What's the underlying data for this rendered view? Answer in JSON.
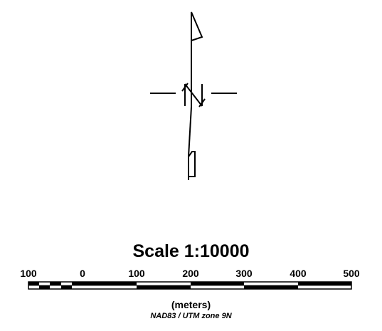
{
  "north_arrow": {
    "label": "N",
    "icon": "north-arrow-icon"
  },
  "scale": {
    "title": "Scale 1:10000",
    "ticks": [
      "100",
      "0",
      "100",
      "200",
      "300",
      "400",
      "500"
    ],
    "units": "(meters)",
    "projection": "NAD83 / UTM zone 9N"
  },
  "colors": {
    "ink": "#000000",
    "background": "#ffffff"
  }
}
